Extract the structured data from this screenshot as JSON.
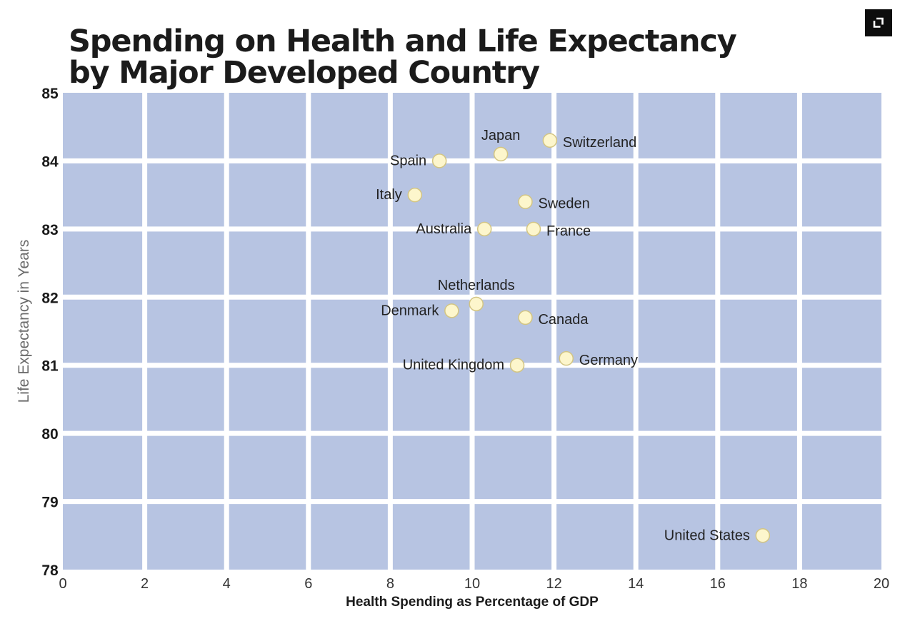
{
  "title_lines": [
    "Spending on Health and Life Expectancy",
    "by Major Developed Country"
  ],
  "expand_icon": "expand-icon",
  "colors": {
    "cell": "#b7c4e2",
    "grid": "#ffffff",
    "point_fill": "#fdf6cc",
    "point_stroke": "#d3c583",
    "text": "#1b1b1b",
    "ylabel": "#6b6b6b"
  },
  "chart_data": {
    "type": "scatter",
    "xlabel": "Health Spending as Percentage of GDP",
    "ylabel": "Life Expectancy in Years",
    "xlim": [
      0,
      20
    ],
    "ylim": [
      78,
      85
    ],
    "xticks": [
      0,
      2,
      4,
      6,
      8,
      10,
      12,
      14,
      16,
      18,
      20
    ],
    "yticks": [
      78,
      79,
      80,
      81,
      82,
      83,
      84,
      85
    ],
    "grid": true,
    "points": [
      {
        "label": "Japan",
        "x": 10.7,
        "y": 84.1,
        "label_pos": "top"
      },
      {
        "label": "Switzerland",
        "x": 11.9,
        "y": 84.3,
        "label_pos": "right"
      },
      {
        "label": "Spain",
        "x": 9.2,
        "y": 84.0,
        "label_pos": "left"
      },
      {
        "label": "Italy",
        "x": 8.6,
        "y": 83.5,
        "label_pos": "left"
      },
      {
        "label": "Sweden",
        "x": 11.3,
        "y": 83.4,
        "label_pos": "right"
      },
      {
        "label": "Australia",
        "x": 10.3,
        "y": 83.0,
        "label_pos": "left"
      },
      {
        "label": "France",
        "x": 11.5,
        "y": 83.0,
        "label_pos": "right"
      },
      {
        "label": "Netherlands",
        "x": 10.1,
        "y": 81.9,
        "label_pos": "top"
      },
      {
        "label": "Denmark",
        "x": 9.5,
        "y": 81.8,
        "label_pos": "left"
      },
      {
        "label": "Canada",
        "x": 11.3,
        "y": 81.7,
        "label_pos": "right"
      },
      {
        "label": "United Kingdom",
        "x": 11.1,
        "y": 81.0,
        "label_pos": "left"
      },
      {
        "label": "Germany",
        "x": 12.3,
        "y": 81.1,
        "label_pos": "right"
      },
      {
        "label": "United States",
        "x": 17.1,
        "y": 78.5,
        "label_pos": "left"
      }
    ]
  }
}
